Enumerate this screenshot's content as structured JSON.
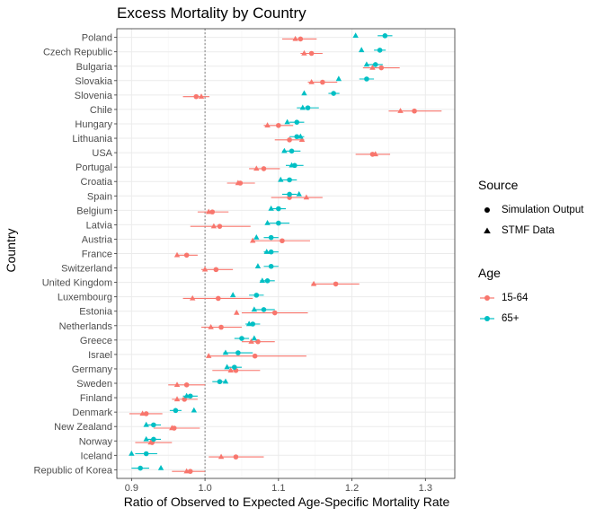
{
  "chart_data": {
    "type": "scatter",
    "title": "Excess Mortality by Country",
    "xlabel": "Ratio of Observed to Expected Age-Specific Mortality Rate",
    "ylabel": "Country",
    "xlim": [
      0.88,
      1.34
    ],
    "x_ticks": [
      0.9,
      1.0,
      1.1,
      1.2,
      1.3
    ],
    "x_tick_labels": [
      "0.9",
      "1.0",
      "1.1",
      "1.2",
      "1.3"
    ],
    "reference_line": 1.0,
    "grid": true,
    "legend_position": "right",
    "countries": [
      "Poland",
      "Czech Republic",
      "Bulgaria",
      "Slovakia",
      "Slovenia",
      "Chile",
      "Hungary",
      "Lithuania",
      "USA",
      "Portugal",
      "Croatia",
      "Spain",
      "Belgium",
      "Latvia",
      "Austria",
      "France",
      "Switzerland",
      "United Kingdom",
      "Luxembourg",
      "Estonia",
      "Netherlands",
      "Greece",
      "Israel",
      "Germany",
      "Sweden",
      "Finland",
      "Denmark",
      "New Zealand",
      "Norway",
      "Iceland",
      "Republic of Korea"
    ],
    "legend_source": {
      "title": "Source",
      "items": [
        {
          "label": "Simulation Output",
          "shape": "circle"
        },
        {
          "label": "STMF Data",
          "shape": "triangle"
        }
      ]
    },
    "legend_age": {
      "title": "Age",
      "items": [
        {
          "label": "15-64",
          "color": "#F8766D"
        },
        {
          "label": "65+",
          "color": "#00BFC4"
        }
      ]
    },
    "series": [
      {
        "name": "15-64",
        "color": "#F8766D",
        "simulation": [
          1.13,
          1.145,
          1.24,
          1.16,
          0.988,
          1.285,
          1.1,
          1.115,
          1.228,
          1.08,
          1.048,
          1.115,
          1.01,
          1.02,
          1.105,
          0.975,
          1.015,
          1.178,
          1.018,
          1.095,
          1.022,
          1.072,
          1.068,
          1.042,
          0.975,
          0.972,
          0.92,
          0.958,
          0.928,
          1.042,
          0.98
        ],
        "sim_low": [
          1.105,
          1.13,
          1.215,
          1.14,
          0.97,
          1.25,
          1.08,
          1.095,
          1.205,
          1.06,
          1.03,
          1.09,
          0.99,
          0.98,
          1.065,
          0.96,
          0.995,
          1.145,
          0.97,
          1.05,
          0.995,
          1.05,
          1.005,
          1.01,
          0.95,
          0.955,
          0.897,
          0.93,
          0.905,
          1.005,
          0.955
        ],
        "sim_high": [
          1.152,
          1.16,
          1.265,
          1.18,
          1.006,
          1.322,
          1.12,
          1.135,
          1.252,
          1.102,
          1.068,
          1.16,
          1.032,
          1.062,
          1.143,
          0.99,
          1.038,
          1.21,
          1.065,
          1.14,
          1.05,
          1.095,
          1.138,
          1.075,
          1.0,
          0.99,
          0.942,
          0.993,
          0.955,
          1.08,
          1.0
        ],
        "stmf": [
          1.123,
          1.135,
          1.228,
          1.145,
          0.995,
          1.266,
          1.085,
          1.132,
          1.232,
          1.07,
          1.045,
          1.138,
          1.005,
          1.012,
          1.065,
          0.962,
          1.0,
          1.148,
          0.983,
          1.043,
          1.008,
          1.063,
          1.005,
          1.035,
          0.962,
          0.962,
          0.915,
          0.955,
          0.926,
          1.022,
          0.975
        ]
      },
      {
        "name": "65+",
        "color": "#00BFC4",
        "simulation": [
          1.245,
          1.238,
          1.232,
          1.22,
          1.175,
          1.14,
          1.125,
          1.125,
          1.118,
          1.122,
          1.115,
          1.115,
          1.1,
          1.1,
          1.09,
          1.09,
          1.09,
          1.085,
          1.07,
          1.08,
          1.065,
          1.05,
          1.045,
          1.04,
          1.02,
          0.98,
          0.96,
          0.93,
          0.93,
          0.92,
          0.912
        ],
        "sim_low": [
          1.235,
          1.23,
          1.222,
          1.21,
          1.168,
          1.125,
          1.115,
          1.115,
          1.105,
          1.11,
          1.105,
          1.105,
          1.09,
          1.085,
          1.08,
          1.08,
          1.08,
          1.075,
          1.06,
          1.065,
          1.055,
          1.04,
          1.025,
          1.03,
          1.01,
          0.97,
          0.952,
          0.92,
          0.92,
          0.905,
          0.9
        ],
        "sim_high": [
          1.255,
          1.246,
          1.242,
          1.23,
          1.183,
          1.155,
          1.135,
          1.135,
          1.13,
          1.134,
          1.125,
          1.125,
          1.11,
          1.115,
          1.1,
          1.1,
          1.1,
          1.095,
          1.08,
          1.095,
          1.075,
          1.06,
          1.065,
          1.05,
          1.03,
          0.99,
          0.968,
          0.94,
          0.94,
          0.935,
          0.924
        ],
        "stmf": [
          1.205,
          1.213,
          1.22,
          1.182,
          1.135,
          1.133,
          1.112,
          1.13,
          1.108,
          1.118,
          1.103,
          1.128,
          1.09,
          1.085,
          1.07,
          1.084,
          1.072,
          1.078,
          1.038,
          1.067,
          1.06,
          1.067,
          1.028,
          1.03,
          1.028,
          0.975,
          0.985,
          0.92,
          0.92,
          0.9,
          0.94
        ]
      }
    ]
  }
}
